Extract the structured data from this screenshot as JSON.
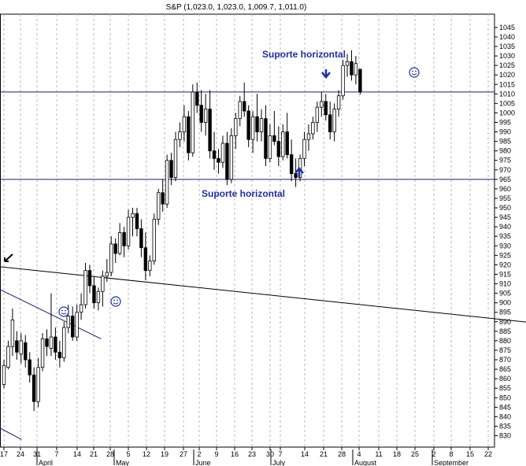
{
  "chart_data": {
    "type": "candlestick",
    "title": "S&P (1,023.0, 1,023.0, 1,009.7, 1,011.0)",
    "ylim": [
      824,
      1052
    ],
    "yticks": [
      830,
      835,
      840,
      845,
      850,
      855,
      860,
      865,
      870,
      875,
      880,
      885,
      890,
      895,
      900,
      905,
      910,
      915,
      920,
      925,
      930,
      935,
      940,
      945,
      950,
      955,
      960,
      965,
      970,
      975,
      980,
      985,
      990,
      995,
      1000,
      1005,
      1010,
      1015,
      1020,
      1025,
      1030,
      1035,
      1040,
      1045
    ],
    "xlabels": [
      "17",
      "24",
      "31",
      "7",
      "14",
      "21",
      "28",
      "5",
      "12",
      "19",
      "27",
      "2",
      "9",
      "16",
      "23",
      "30",
      "7",
      "14",
      "21",
      "28",
      "4",
      "11",
      "18",
      "25",
      "2",
      "8",
      "15",
      "22"
    ],
    "months": [
      "April",
      "May",
      "June",
      "July",
      "August",
      "September"
    ],
    "horizontal_support": [
      1011,
      965
    ],
    "resistance_line": {
      "from": [
        0,
        919
      ],
      "to": [
        172,
        878
      ]
    },
    "channel_line": {
      "from": [
        0,
        907
      ],
      "to": [
        23,
        881
      ]
    },
    "lower_line": {
      "from": [
        0,
        834
      ],
      "to": [
        3,
        828
      ]
    },
    "candles": [
      [
        857,
        870,
        855,
        867
      ],
      [
        866,
        880,
        865,
        877
      ],
      [
        877,
        897,
        872,
        891
      ],
      [
        880,
        885,
        870,
        874
      ],
      [
        873,
        884,
        868,
        880
      ],
      [
        879,
        883,
        866,
        870
      ],
      [
        870,
        874,
        858,
        862
      ],
      [
        862,
        866,
        843,
        848
      ],
      [
        848,
        871,
        845,
        866
      ],
      [
        866,
        884,
        864,
        881
      ],
      [
        881,
        886,
        872,
        877
      ],
      [
        876,
        905,
        872,
        882
      ],
      [
        882,
        887,
        870,
        874
      ],
      [
        874,
        880,
        866,
        871
      ],
      [
        871,
        890,
        869,
        887
      ],
      [
        887,
        899,
        884,
        893
      ],
      [
        893,
        898,
        880,
        882
      ],
      [
        882,
        899,
        880,
        895
      ],
      [
        895,
        905,
        891,
        899
      ],
      [
        899,
        921,
        897,
        917
      ],
      [
        917,
        920,
        905,
        909
      ],
      [
        909,
        914,
        897,
        900
      ],
      [
        900,
        908,
        896,
        906
      ],
      [
        906,
        917,
        898,
        914
      ],
      [
        914,
        923,
        911,
        916
      ],
      [
        916,
        935,
        914,
        931
      ],
      [
        931,
        934,
        921,
        926
      ],
      [
        926,
        942,
        925,
        937
      ],
      [
        937,
        940,
        924,
        930
      ],
      [
        930,
        949,
        928,
        945
      ],
      [
        945,
        950,
        935,
        947
      ],
      [
        947,
        950,
        935,
        939
      ],
      [
        939,
        944,
        924,
        929
      ],
      [
        929,
        937,
        912,
        917
      ],
      [
        917,
        925,
        914,
        922
      ],
      [
        922,
        947,
        920,
        944
      ],
      [
        944,
        960,
        941,
        958
      ],
      [
        958,
        965,
        948,
        952
      ],
      [
        952,
        978,
        950,
        975
      ],
      [
        975,
        979,
        962,
        966
      ],
      [
        966,
        990,
        964,
        986
      ],
      [
        986,
        995,
        982,
        990
      ],
      [
        990,
        1004,
        985,
        998
      ],
      [
        998,
        1001,
        975,
        979
      ],
      [
        979,
        1015,
        977,
        1011
      ],
      [
        1011,
        1016,
        1000,
        1004
      ],
      [
        1004,
        1012,
        990,
        995
      ],
      [
        995,
        1010,
        988,
        1002
      ],
      [
        1002,
        1012,
        976,
        980
      ],
      [
        980,
        990,
        970,
        976
      ],
      [
        976,
        981,
        968,
        974
      ],
      [
        974,
        988,
        971,
        984
      ],
      [
        984,
        990,
        962,
        965
      ],
      [
        965,
        992,
        963,
        988
      ],
      [
        988,
        1000,
        981,
        997
      ],
      [
        997,
        1009,
        993,
        1006
      ],
      [
        1006,
        1016,
        998,
        1001
      ],
      [
        1001,
        1004,
        982,
        986
      ],
      [
        986,
        1001,
        979,
        998
      ],
      [
        998,
        1010,
        985,
        990
      ],
      [
        990,
        1002,
        985,
        997
      ],
      [
        997,
        1004,
        972,
        976
      ],
      [
        976,
        994,
        974,
        988
      ],
      [
        988,
        1001,
        983,
        985
      ],
      [
        985,
        993,
        972,
        977
      ],
      [
        977,
        994,
        975,
        990
      ],
      [
        990,
        1000,
        976,
        978
      ],
      [
        978,
        986,
        964,
        968
      ],
      [
        968,
        976,
        961,
        966
      ],
      [
        966,
        978,
        964,
        976
      ],
      [
        976,
        990,
        972,
        986
      ],
      [
        986,
        994,
        980,
        989
      ],
      [
        989,
        998,
        986,
        995
      ],
      [
        995,
        1006,
        990,
        1003
      ],
      [
        1003,
        1011,
        998,
        1006
      ],
      [
        1006,
        1010,
        996,
        999
      ],
      [
        999,
        1006,
        986,
        990
      ],
      [
        990,
        1005,
        985,
        1002
      ],
      [
        1002,
        1012,
        998,
        1009
      ],
      [
        1009,
        1028,
        1007,
        1025
      ],
      [
        1025,
        1031,
        1019,
        1027
      ],
      [
        1027,
        1033,
        1017,
        1020
      ],
      [
        1020,
        1030,
        1015,
        1026
      ],
      [
        1023,
        1023,
        1009.7,
        1011
      ]
    ],
    "annotations": [
      {
        "text": "Suporte horizontal",
        "value": 1024
      },
      {
        "text": "Suporte horizontal",
        "value": 954
      }
    ]
  }
}
